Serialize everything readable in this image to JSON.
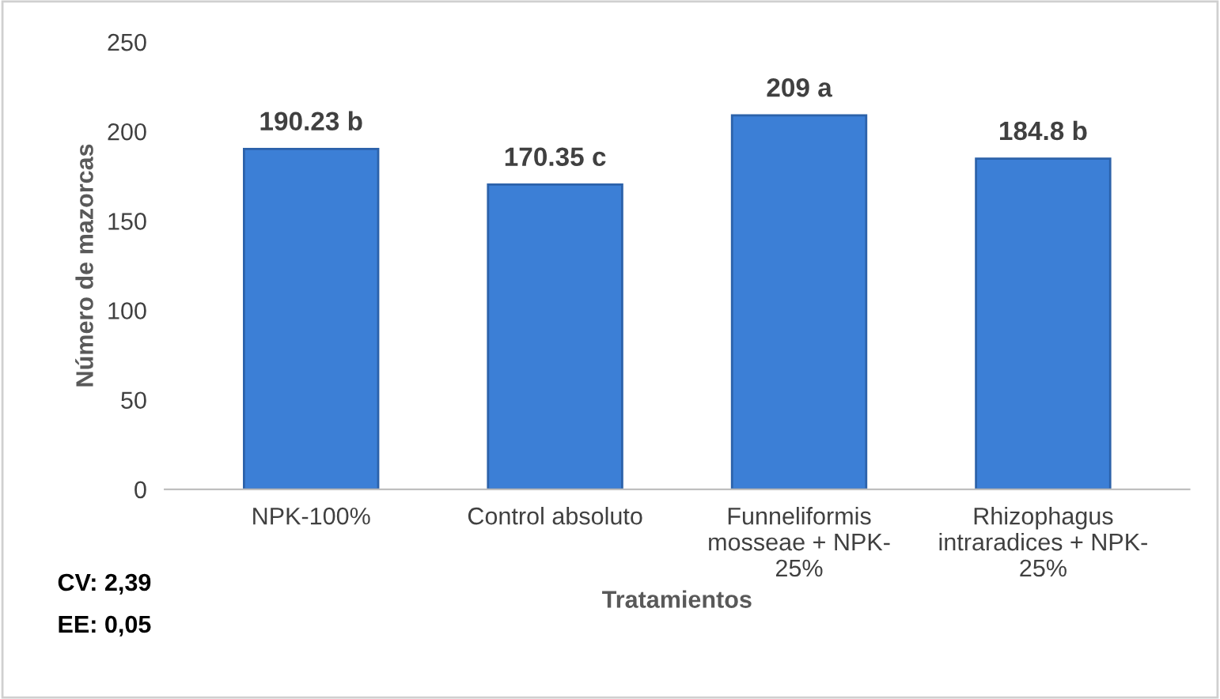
{
  "chart_data": {
    "type": "bar",
    "categories": [
      "NPK-100%",
      "Control absoluto",
      "Funneliformis\nmosseae + NPK-\n25%",
      "Rhizophagus\nintraradices + NPK-\n25%"
    ],
    "values": [
      190.23,
      170.35,
      209,
      184.8
    ],
    "value_labels": [
      "190.23 b",
      "170.35 c",
      "209 a",
      "184.8 b"
    ],
    "color": "#3c7fd6",
    "xlabel": "Tratamientos",
    "ylabel": "Número de mazorcas",
    "ylim": [
      0,
      250
    ],
    "yticks": [
      0,
      50,
      100,
      150,
      200,
      250
    ],
    "grid": false,
    "annotations": [
      "CV: 2,39",
      "EE: 0,05"
    ]
  }
}
